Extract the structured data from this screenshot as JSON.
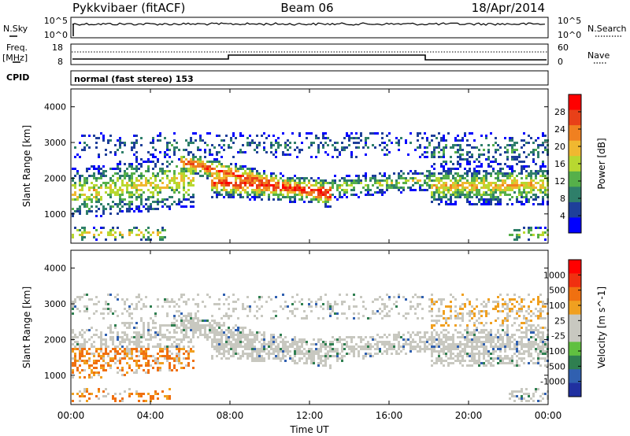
{
  "header": {
    "station": "Pykkvibaer (fitACF)",
    "beam": "Beam 06",
    "date": "18/Apr/2014"
  },
  "strips": {
    "nsky_label": "N.Sky",
    "nsky_ticks": [
      "10^5",
      "10^0"
    ],
    "nsearch_label": "N.Search",
    "freq_label": "Freq.",
    "freq_unit": "[MHz]",
    "freq_ticks": [
      "18",
      "8"
    ],
    "nave_label": "Nave",
    "nave_ticks": [
      "60",
      "0"
    ],
    "cpid_label": "CPID",
    "cpid_text": "normal (fast stereo) 153"
  },
  "chart_data": [
    {
      "type": "heatmap",
      "name": "power-panel",
      "ylabel": "Slant Range [km]",
      "xlabel": "",
      "x_ticks": [
        "00:00",
        "04:00",
        "08:00",
        "12:00",
        "16:00",
        "20:00",
        "00:00"
      ],
      "y_ticks": [
        "4000",
        "3000",
        "2000",
        "1000"
      ],
      "ylim": [
        180,
        4500
      ],
      "colorbar": {
        "label": "Power [dB]",
        "ticks": [
          "28",
          "24",
          "20",
          "16",
          "12",
          "8",
          "4"
        ],
        "colors": [
          "#0000ff",
          "#1e3f9a",
          "#2f7f6a",
          "#56b04a",
          "#b8d830",
          "#f0b830",
          "#f08020",
          "#e84018",
          "#ff0000"
        ]
      }
    },
    {
      "type": "heatmap",
      "name": "velocity-panel",
      "ylabel": "Slant Range [km]",
      "xlabel": "Time UT",
      "x_ticks": [
        "00:00",
        "04:00",
        "08:00",
        "12:00",
        "16:00",
        "20:00",
        "00:00"
      ],
      "y_ticks": [
        "4000",
        "3000",
        "2000",
        "1000"
      ],
      "ylim": [
        180,
        4500
      ],
      "colorbar": {
        "label": "Velocity [m s^-1]",
        "ticks": [
          "1000",
          "500",
          "100",
          "25",
          "-25",
          "-100",
          "-500",
          "-1000"
        ],
        "colors": [
          "#2030a0",
          "#3060b0",
          "#2f7f50",
          "#60c040",
          "#c8c8c0",
          "#c8c8c0",
          "#f0a020",
          "#f07010",
          "#f03010",
          "#ff0000"
        ]
      }
    }
  ]
}
